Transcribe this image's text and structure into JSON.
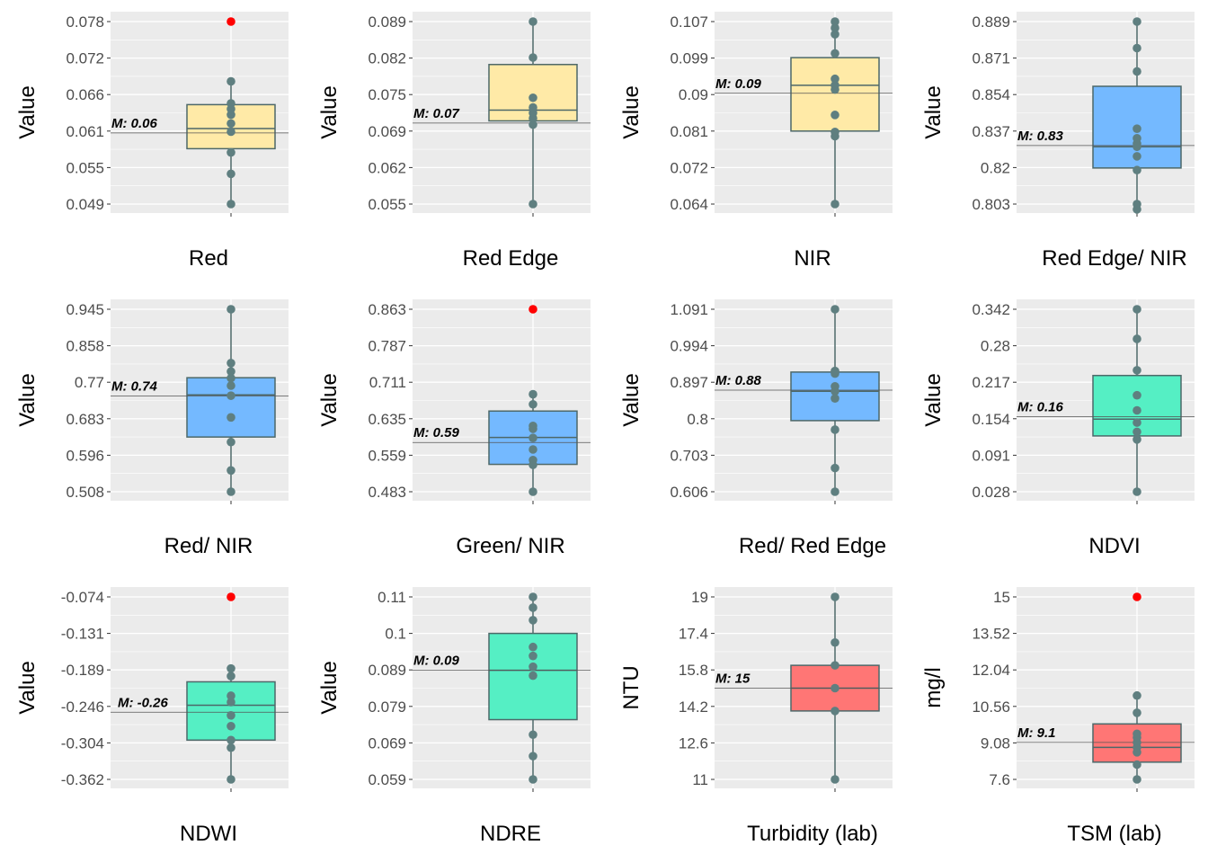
{
  "colors": {
    "panel_bg": "#EBEBEB",
    "grid": "#FFFFFF",
    "point": "#5F7F80",
    "outlier": "#FF0000",
    "line": "#4D6869",
    "yellow": "#FFEAA7",
    "blue": "#74B9FF",
    "green": "#55EFC4",
    "red": "#FF7675"
  },
  "chart_data": [
    {
      "type": "box",
      "xlabel": "Red",
      "ylabel": "Value",
      "mean_label": "M: 0.06",
      "mean": 0.0603,
      "fill": "yellow",
      "yticks": [
        "0.049",
        "0.055",
        "0.061",
        "0.066",
        "0.072",
        "0.078"
      ],
      "ylim": [
        0.049,
        0.078
      ],
      "box": {
        "q1": 0.0578,
        "median": 0.061,
        "q3": 0.0648,
        "whisker_low": 0.049,
        "whisker_high": 0.0685
      },
      "points": [
        0.049,
        0.0538,
        0.0572,
        0.0605,
        0.0618,
        0.0632,
        0.0641,
        0.065,
        0.0685
      ],
      "outliers": [
        0.078
      ]
    },
    {
      "type": "box",
      "xlabel": "Red Edge",
      "ylabel": "Value",
      "mean_label": "M: 0.07",
      "mean": 0.0701,
      "fill": "yellow",
      "yticks": [
        "0.055",
        "0.062",
        "0.069",
        "0.075",
        "0.082",
        "0.089"
      ],
      "ylim": [
        0.055,
        0.089
      ],
      "box": {
        "q1": 0.0705,
        "median": 0.0725,
        "q3": 0.081,
        "whisker_low": 0.055,
        "whisker_high": 0.089
      },
      "points": [
        0.055,
        0.0698,
        0.071,
        0.072,
        0.073,
        0.0748,
        0.0823,
        0.089
      ],
      "outliers": []
    },
    {
      "type": "box",
      "xlabel": "NIR",
      "ylabel": "Value",
      "mean_label": "M: 0.09",
      "mean": 0.0901,
      "fill": "yellow",
      "yticks": [
        "0.064",
        "0.072",
        "0.081",
        "0.09",
        "0.099",
        "0.107"
      ],
      "ylim": [
        0.064,
        0.107
      ],
      "box": {
        "q1": 0.0812,
        "median": 0.092,
        "q3": 0.0985,
        "whisker_low": 0.064,
        "whisker_high": 0.107
      },
      "points": [
        0.064,
        0.08,
        0.081,
        0.085,
        0.091,
        0.092,
        0.0935,
        0.0995,
        0.104,
        0.1055,
        0.107
      ],
      "outliers": []
    },
    {
      "type": "box",
      "xlabel": "Red Edge/ NIR",
      "ylabel": "Value",
      "mean_label": "M: 0.83",
      "mean": 0.8306,
      "fill": "blue",
      "yticks": [
        "0.803",
        "0.82",
        "0.837",
        "0.854",
        "0.871",
        "0.889"
      ],
      "ylim": [
        0.803,
        0.889
      ],
      "box": {
        "q1": 0.82,
        "median": 0.83,
        "q3": 0.8585,
        "whisker_low": 0.8005,
        "whisker_high": 0.889
      },
      "points": [
        0.8005,
        0.803,
        0.819,
        0.8255,
        0.83,
        0.8315,
        0.834,
        0.8385,
        0.8655,
        0.8765,
        0.889
      ],
      "outliers": []
    },
    {
      "type": "box",
      "xlabel": "Red/ NIR",
      "ylabel": "Value",
      "mean_label": "M: 0.74",
      "mean": 0.7375,
      "fill": "blue",
      "yticks": [
        "0.508",
        "0.596",
        "0.683",
        "0.77",
        "0.858",
        "0.945"
      ],
      "ylim": [
        0.508,
        0.945
      ],
      "box": {
        "q1": 0.639,
        "median": 0.74,
        "q3": 0.781,
        "whisker_low": 0.508,
        "whisker_high": 0.945
      },
      "points": [
        0.508,
        0.559,
        0.627,
        0.686,
        0.738,
        0.762,
        0.78,
        0.796,
        0.816,
        0.945
      ],
      "outliers": []
    },
    {
      "type": "box",
      "xlabel": "Green/ NIR",
      "ylabel": "Value",
      "mean_label": "M: 0.59",
      "mean": 0.5855,
      "fill": "blue",
      "yticks": [
        "0.483",
        "0.559",
        "0.635",
        "0.711",
        "0.787",
        "0.863"
      ],
      "ylim": [
        0.483,
        0.863
      ],
      "box": {
        "q1": 0.54,
        "median": 0.596,
        "q3": 0.651,
        "whisker_low": 0.483,
        "whisker_high": 0.686
      },
      "points": [
        0.483,
        0.539,
        0.549,
        0.571,
        0.595,
        0.614,
        0.62,
        0.665,
        0.686
      ],
      "outliers": [
        0.863
      ]
    },
    {
      "type": "box",
      "xlabel": "Red/ Red Edge",
      "ylabel": "Value",
      "mean_label": "M: 0.88",
      "mean": 0.876,
      "fill": "blue",
      "yticks": [
        "0.606",
        "0.703",
        "0.8",
        "0.897",
        "0.994",
        "1.091"
      ],
      "ylim": [
        0.606,
        1.091
      ],
      "box": {
        "q1": 0.795,
        "median": 0.873,
        "q3": 0.924,
        "whisker_low": 0.606,
        "whisker_high": 1.091
      },
      "points": [
        0.606,
        0.669,
        0.771,
        0.854,
        0.873,
        0.886,
        0.92,
        0.927,
        1.091
      ],
      "outliers": []
    },
    {
      "type": "box",
      "xlabel": "NDVI",
      "ylabel": "Value",
      "mean_label": "M: 0.16",
      "mean": 0.157,
      "fill": "green",
      "yticks": [
        "0.028",
        "0.091",
        "0.154",
        "0.217",
        "0.28",
        "0.342"
      ],
      "ylim": [
        0.028,
        0.342
      ],
      "box": {
        "q1": 0.124,
        "median": 0.153,
        "q3": 0.228,
        "whisker_low": 0.028,
        "whisker_high": 0.342
      },
      "points": [
        0.028,
        0.118,
        0.131,
        0.147,
        0.168,
        0.194,
        0.237,
        0.291,
        0.342
      ],
      "outliers": []
    },
    {
      "type": "box",
      "xlabel": "NDWI",
      "ylabel": "Value",
      "mean_label": "M: -0.26",
      "mean": -0.256,
      "fill": "green",
      "yticks": [
        "-0.362",
        "-0.304",
        "-0.246",
        "-0.189",
        "-0.131",
        "-0.074"
      ],
      "ylim": [
        -0.362,
        -0.074
      ],
      "box": {
        "q1": -0.3,
        "median": -0.245,
        "q3": -0.208,
        "whisker_low": -0.362,
        "whisker_high": -0.187
      },
      "points": [
        -0.362,
        -0.312,
        -0.3,
        -0.278,
        -0.261,
        -0.24,
        -0.23,
        -0.199,
        -0.187
      ],
      "outliers": [
        -0.074
      ]
    },
    {
      "type": "box",
      "xlabel": "NDRE",
      "ylabel": "Value",
      "mean_label": "M: 0.09",
      "mean": 0.0895,
      "fill": "green",
      "yticks": [
        "0.059",
        "0.069",
        "0.079",
        "0.089",
        "0.1",
        "0.11"
      ],
      "ylim": [
        0.059,
        0.11
      ],
      "box": {
        "q1": 0.0757,
        "median": 0.0895,
        "q3": 0.0998,
        "whisker_low": 0.059,
        "whisker_high": 0.11
      },
      "points": [
        0.059,
        0.0655,
        0.0715,
        0.088,
        0.0905,
        0.0935,
        0.096,
        0.1035,
        0.107,
        0.11
      ],
      "outliers": []
    },
    {
      "type": "box",
      "xlabel": "Turbidity (lab)",
      "ylabel": "NTU",
      "mean_label": "M: 15",
      "mean": 15.0,
      "fill": "red",
      "yticks": [
        "11",
        "12.6",
        "14.2",
        "15.8",
        "17.4",
        "19"
      ],
      "ylim": [
        11,
        19
      ],
      "box": {
        "q1": 14.0,
        "median": 15.0,
        "q3": 16.0,
        "whisker_low": 11,
        "whisker_high": 19
      },
      "points": [
        11,
        14.0,
        15.0,
        16.0,
        17.0,
        19
      ],
      "outliers": []
    },
    {
      "type": "box",
      "xlabel": "TSM (lab)",
      "ylabel": "mg/l",
      "mean_label": "M: 9.1",
      "mean": 9.1,
      "fill": "red",
      "yticks": [
        "7.6",
        "9.08",
        "10.56",
        "12.04",
        "13.52",
        "15"
      ],
      "ylim": [
        7.6,
        15
      ],
      "box": {
        "q1": 8.3,
        "median": 8.9,
        "q3": 9.85,
        "whisker_low": 7.6,
        "whisker_high": 11.0
      },
      "points": [
        7.6,
        8.2,
        8.7,
        8.9,
        9.1,
        9.3,
        9.45,
        10.3,
        11.0
      ],
      "outliers": [
        15
      ]
    }
  ]
}
